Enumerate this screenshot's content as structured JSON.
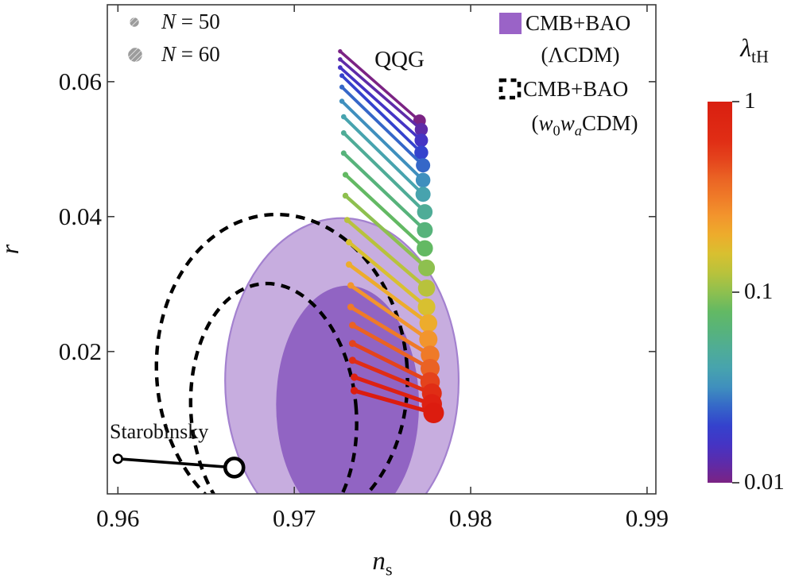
{
  "figure": {
    "qqg_label": "QQG",
    "starobinsky_label": "Starobinsky"
  },
  "legend_markers": {
    "n50_parts": [
      {
        "t": "N",
        "it": true
      },
      {
        "t": " = 50"
      }
    ],
    "n60_parts": [
      {
        "t": "N",
        "it": true
      },
      {
        "t": " = 60"
      }
    ],
    "marker_color": "#9c9c9c"
  },
  "legend_datasets": {
    "lcdm_line1_parts": [
      {
        "t": "CMB+BAO"
      }
    ],
    "lcdm_line2_parts": [
      {
        "t": "(ΛCDM)"
      }
    ],
    "w0wa_line1_parts": [
      {
        "t": "CMB+BAO"
      }
    ],
    "w0wa_line2_parts": [
      {
        "t": "("
      },
      {
        "t": "w",
        "it": true
      },
      {
        "sub": "0"
      },
      {
        "t": "w",
        "it": true
      },
      {
        "sub": "a",
        "it": true
      },
      {
        "t": "CDM)"
      }
    ],
    "lcdm_swatch_color": "#9a63c7",
    "w0wa_dash_color": "#000000"
  },
  "colorbar": {
    "title_parts": [
      {
        "t": "λ",
        "it": true
      },
      {
        "sub": "tH"
      }
    ],
    "scale": "log",
    "ticks": [
      {
        "v": 1,
        "label": "1"
      },
      {
        "v": 0.1,
        "label": "0.1"
      },
      {
        "v": 0.01,
        "label": "0.01"
      }
    ],
    "gradient_stops": [
      [
        0.0,
        "#7b2384"
      ],
      [
        0.05,
        "#5e2ba8"
      ],
      [
        0.1,
        "#4534c4"
      ],
      [
        0.15,
        "#3442cd"
      ],
      [
        0.2,
        "#3567c8"
      ],
      [
        0.25,
        "#3f8fbe"
      ],
      [
        0.3,
        "#47a3ae"
      ],
      [
        0.35,
        "#4fac97"
      ],
      [
        0.4,
        "#57b37b"
      ],
      [
        0.45,
        "#63b963"
      ],
      [
        0.5,
        "#8ec04f"
      ],
      [
        0.55,
        "#b8c23c"
      ],
      [
        0.6,
        "#d8c030"
      ],
      [
        0.65,
        "#edac2c"
      ],
      [
        0.7,
        "#f2952d"
      ],
      [
        0.75,
        "#ef7a28"
      ],
      [
        0.8,
        "#ea6224"
      ],
      [
        0.85,
        "#e4431c"
      ],
      [
        0.9,
        "#e02d15"
      ],
      [
        1.0,
        "#d91f10"
      ]
    ]
  },
  "chart_data": {
    "type": "scatter",
    "xlabel": "n_s",
    "ylabel": "r",
    "xlabel_parts": [
      {
        "t": "n",
        "it": true
      },
      {
        "sub": "s"
      }
    ],
    "ylabel_parts": [
      {
        "t": "r",
        "it": true
      }
    ],
    "xlim": [
      0.9594,
      0.9905
    ],
    "ylim": [
      -0.0011,
      0.0714
    ],
    "x_ticks": [
      {
        "v": 0.96,
        "label": "0.96"
      },
      {
        "v": 0.97,
        "label": "0.97"
      },
      {
        "v": 0.98,
        "label": "0.98"
      },
      {
        "v": 0.99,
        "label": "0.99"
      }
    ],
    "y_ticks": [
      {
        "v": 0.02,
        "label": "0.02"
      },
      {
        "v": 0.04,
        "label": "0.04"
      },
      {
        "v": 0.06,
        "label": "0.06"
      }
    ],
    "grid": false,
    "series_note": "QQG model predictions: each segment joins the N = 50 point (small dot) to the N = 60 point (large dot); color encodes lambda_tH from 0.01 (purple) to 1 (red)",
    "segments": [
      {
        "color": "#7b2384",
        "n50": [
          0.9726,
          0.0645
        ],
        "n60": [
          0.9771,
          0.0542
        ]
      },
      {
        "color": "#5e2ba8",
        "n50": [
          0.9726,
          0.0633
        ],
        "n60": [
          0.9772,
          0.0529
        ]
      },
      {
        "color": "#4534c4",
        "n50": [
          0.9726,
          0.0621
        ],
        "n60": [
          0.9772,
          0.0513
        ]
      },
      {
        "color": "#3442cd",
        "n50": [
          0.9727,
          0.0609
        ],
        "n60": [
          0.9772,
          0.0495
        ]
      },
      {
        "color": "#3567c8",
        "n50": [
          0.9727,
          0.0592
        ],
        "n60": [
          0.9773,
          0.0476
        ]
      },
      {
        "color": "#3f8fbe",
        "n50": [
          0.9727,
          0.0571
        ],
        "n60": [
          0.9773,
          0.0454
        ]
      },
      {
        "color": "#47a3ae",
        "n50": [
          0.9728,
          0.0548
        ],
        "n60": [
          0.9773,
          0.0433
        ]
      },
      {
        "color": "#4fac97",
        "n50": [
          0.9728,
          0.0524
        ],
        "n60": [
          0.9774,
          0.0407
        ]
      },
      {
        "color": "#57b37b",
        "n50": [
          0.9728,
          0.0494
        ],
        "n60": [
          0.9774,
          0.038
        ]
      },
      {
        "color": "#63b963",
        "n50": [
          0.9729,
          0.0462
        ],
        "n60": [
          0.9774,
          0.0353
        ]
      },
      {
        "color": "#8ec04f",
        "n50": [
          0.9729,
          0.0431
        ],
        "n60": [
          0.9775,
          0.0324
        ]
      },
      {
        "color": "#b8c23c",
        "n50": [
          0.973,
          0.0395
        ],
        "n60": [
          0.9775,
          0.0294
        ]
      },
      {
        "color": "#d8c030",
        "n50": [
          0.9731,
          0.0362
        ],
        "n60": [
          0.9775,
          0.0266
        ]
      },
      {
        "color": "#edac2c",
        "n50": [
          0.9731,
          0.0329
        ],
        "n60": [
          0.9776,
          0.0242
        ]
      },
      {
        "color": "#f2952d",
        "n50": [
          0.9732,
          0.0298
        ],
        "n60": [
          0.9776,
          0.0218
        ]
      },
      {
        "color": "#ef7a28",
        "n50": [
          0.9732,
          0.0266
        ],
        "n60": [
          0.9777,
          0.0195
        ]
      },
      {
        "color": "#ea6224",
        "n50": [
          0.9733,
          0.0239
        ],
        "n60": [
          0.9777,
          0.0175
        ]
      },
      {
        "color": "#e4431c",
        "n50": [
          0.9733,
          0.0212
        ],
        "n60": [
          0.9777,
          0.0155
        ]
      },
      {
        "color": "#e02d15",
        "n50": [
          0.9733,
          0.0187
        ],
        "n60": [
          0.9778,
          0.0138
        ]
      },
      {
        "color": "#de2112",
        "n50": [
          0.9734,
          0.0162
        ],
        "n60": [
          0.9778,
          0.0122
        ]
      },
      {
        "color": "#dc1c0f",
        "n50": [
          0.9734,
          0.0142
        ],
        "n60": [
          0.9779,
          0.0109
        ]
      }
    ],
    "starobinsky": {
      "n50": [
        0.96,
        0.0041
      ],
      "n60": [
        0.9666,
        0.0028
      ]
    },
    "contours_lcdm": [
      {
        "sigma": 2,
        "center": [
          0.9727,
          0.01565
        ],
        "rx": 0.00662,
        "ry": 0.02412,
        "rot": 0,
        "fill": "#c7addf",
        "stroke": "#a381cf"
      },
      {
        "sigma": 1,
        "center": [
          0.97302,
          0.01212
        ],
        "rx": 0.00405,
        "ry": 0.01765,
        "rot": 0,
        "fill": "#9164c3",
        "stroke": "none"
      }
    ],
    "contours_w0wa": [
      {
        "sigma": 2,
        "center": [
          0.9693,
          0.01682
        ],
        "rx": 0.0071,
        "ry": 0.02353,
        "rot": -5
      },
      {
        "sigma": 1,
        "center": [
          0.96883,
          0.01094
        ],
        "rx": 0.00468,
        "ry": 0.01918,
        "rot": -5
      }
    ]
  }
}
